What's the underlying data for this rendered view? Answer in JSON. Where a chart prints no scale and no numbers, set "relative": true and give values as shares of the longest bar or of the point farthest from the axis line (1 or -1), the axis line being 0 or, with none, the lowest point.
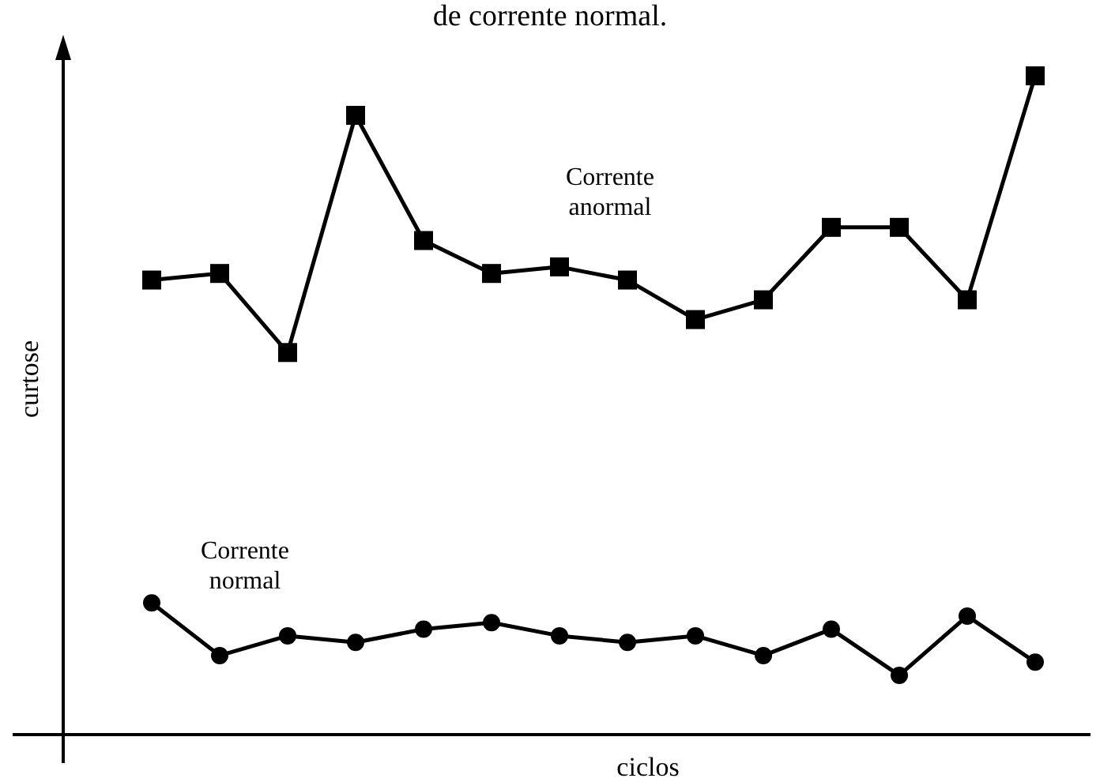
{
  "chart_data": {
    "type": "line",
    "title": "de corrente normal.",
    "xlabel": "ciclos",
    "ylabel": "curtose",
    "relative": true,
    "line_style": "solid",
    "categories": [
      null,
      null,
      null,
      null,
      null,
      null,
      null,
      null,
      null,
      null,
      null,
      null,
      null,
      null
    ],
    "series": [
      {
        "name": "Corrente anormal",
        "color": "#000000",
        "marker": "square",
        "values": [
          0.69,
          0.7,
          0.58,
          0.94,
          0.75,
          0.7,
          0.71,
          0.69,
          0.63,
          0.66,
          0.77,
          0.77,
          0.66,
          1
        ]
      },
      {
        "name": "Corrente normal",
        "color": "#000000",
        "marker": "circle",
        "values": [
          0.2,
          0.12,
          0.15,
          0.14,
          0.16,
          0.17,
          0.15,
          0.14,
          0.15,
          0.12,
          0.16,
          0.09,
          0.18,
          0.11
        ]
      }
    ]
  }
}
